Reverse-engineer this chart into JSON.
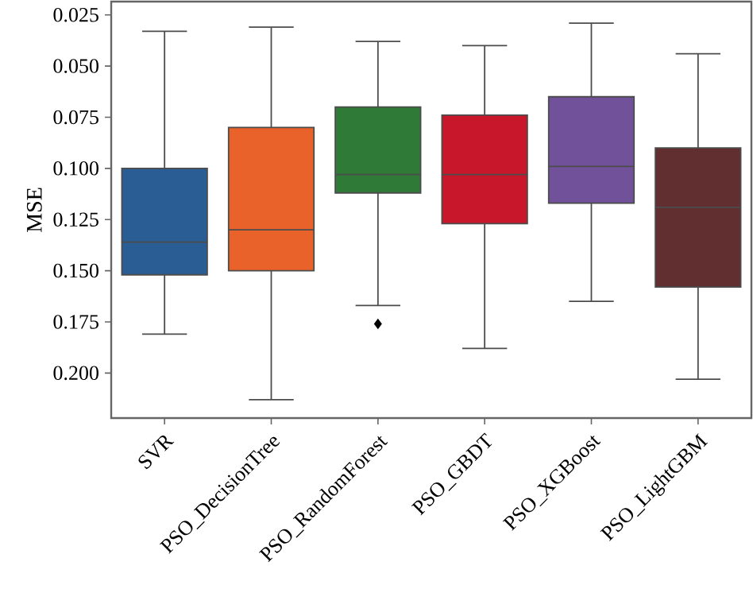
{
  "chart_data": {
    "type": "box",
    "ylabel": "MSE",
    "categories": [
      "SVR",
      "PSO_DecisionTree",
      "PSO_RandomForest",
      "PSO_GBDT",
      "PSO_XGBoost",
      "PSO_LightGBM"
    ],
    "colors": [
      "#2a5d94",
      "#e8622a",
      "#2f7a36",
      "#c8172a",
      "#70519a",
      "#622f31"
    ],
    "ylim": [
      0.222,
      0.0185
    ],
    "yticks": [
      {
        "value": 0.025,
        "label": "0.025"
      },
      {
        "value": 0.05,
        "label": "0.050"
      },
      {
        "value": 0.075,
        "label": "0.075"
      },
      {
        "value": 0.1,
        "label": "0.100"
      },
      {
        "value": 0.125,
        "label": "0.125"
      },
      {
        "value": 0.15,
        "label": "0.150"
      },
      {
        "value": 0.175,
        "label": "0.175"
      },
      {
        "value": 0.2,
        "label": "0.200"
      }
    ],
    "marker": "diamond",
    "boxes": [
      {
        "low": 0.033,
        "q1": 0.1,
        "median": 0.136,
        "q3": 0.152,
        "high": 0.181
      },
      {
        "low": 0.031,
        "q1": 0.08,
        "median": 0.13,
        "q3": 0.15,
        "high": 0.213
      },
      {
        "low": 0.038,
        "q1": 0.07,
        "median": 0.103,
        "q3": 0.112,
        "high": 0.167,
        "outliers": [
          0.176
        ]
      },
      {
        "low": 0.04,
        "q1": 0.074,
        "median": 0.103,
        "q3": 0.127,
        "high": 0.188
      },
      {
        "low": 0.029,
        "q1": 0.065,
        "median": 0.099,
        "q3": 0.117,
        "high": 0.165
      },
      {
        "low": 0.044,
        "q1": 0.09,
        "median": 0.119,
        "q3": 0.158,
        "high": 0.203
      }
    ]
  }
}
